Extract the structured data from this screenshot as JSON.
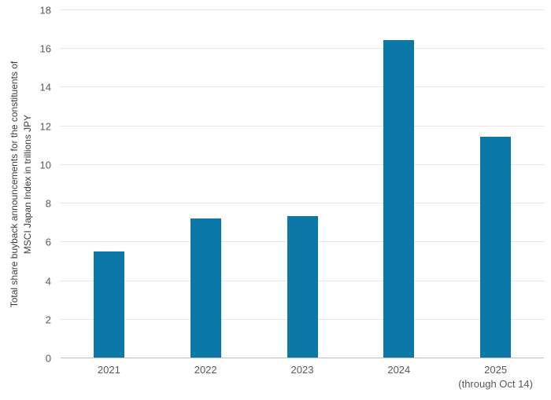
{
  "chart_data": {
    "type": "bar",
    "title": "",
    "ylabel_line1": "Total share buyback announcements for the constituents of",
    "ylabel_line2": "MSCI Japan Index in trillions JPY",
    "xlabel": "",
    "categories": [
      "2021",
      "2022",
      "2023",
      "2024",
      "2025"
    ],
    "category_sublabels": [
      "",
      "",
      "",
      "",
      "(through Oct 14)"
    ],
    "values": [
      5.5,
      7.2,
      7.3,
      16.4,
      11.4
    ],
    "ylim": [
      0,
      18
    ],
    "ytick_step": 2,
    "grid": "horizontal",
    "legend": "none",
    "colors": {
      "bar": "#0b78a8",
      "gridline": "#e7e7e7",
      "baseline": "#c0c0c0",
      "tick_text": "#595959",
      "axis_title_text": "#404040"
    }
  }
}
